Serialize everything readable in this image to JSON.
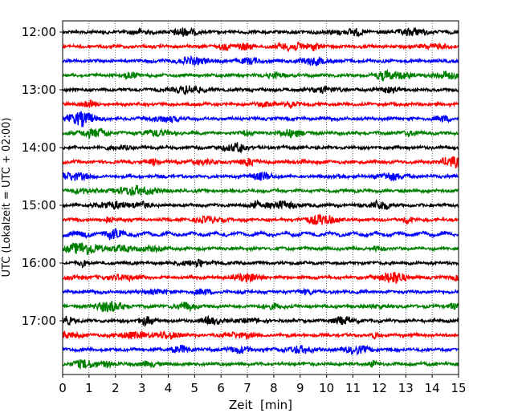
{
  "chart_data": {
    "type": "line",
    "title": "",
    "xlabel": "Zeit  [min]",
    "ylabel": "UTC (Lokalzeit = UTC + 02:00)",
    "xlim": [
      0,
      15
    ],
    "x_ticks": [
      "0",
      "1",
      "2",
      "3",
      "4",
      "5",
      "6",
      "7",
      "8",
      "9",
      "10",
      "11",
      "12",
      "13",
      "14",
      "15"
    ],
    "y_ticks": [
      "12:00",
      "13:00",
      "14:00",
      "15:00",
      "16:00",
      "17:00"
    ],
    "grid": "vertical dotted at each minute",
    "trace_interval_min": 15,
    "trace_start": "12:00",
    "trace_count": 24,
    "trace_colors": [
      "#000000",
      "#ff0000",
      "#0000ff",
      "#008000"
    ],
    "series": [
      {
        "time": "12:00",
        "color": "#000000"
      },
      {
        "time": "12:15",
        "color": "#ff0000"
      },
      {
        "time": "12:30",
        "color": "#0000ff"
      },
      {
        "time": "12:45",
        "color": "#008000"
      },
      {
        "time": "13:00",
        "color": "#000000"
      },
      {
        "time": "13:15",
        "color": "#ff0000"
      },
      {
        "time": "13:30",
        "color": "#0000ff"
      },
      {
        "time": "13:45",
        "color": "#008000"
      },
      {
        "time": "14:00",
        "color": "#000000"
      },
      {
        "time": "14:15",
        "color": "#ff0000"
      },
      {
        "time": "14:30",
        "color": "#0000ff"
      },
      {
        "time": "14:45",
        "color": "#008000"
      },
      {
        "time": "15:00",
        "color": "#000000"
      },
      {
        "time": "15:15",
        "color": "#ff0000"
      },
      {
        "time": "15:30",
        "color": "#0000ff"
      },
      {
        "time": "15:45",
        "color": "#008000"
      },
      {
        "time": "16:00",
        "color": "#000000"
      },
      {
        "time": "16:15",
        "color": "#ff0000"
      },
      {
        "time": "16:30",
        "color": "#0000ff"
      },
      {
        "time": "16:45",
        "color": "#008000"
      },
      {
        "time": "17:00",
        "color": "#000000"
      },
      {
        "time": "17:15",
        "color": "#ff0000"
      },
      {
        "time": "17:30",
        "color": "#0000ff"
      },
      {
        "time": "17:45",
        "color": "#008000"
      }
    ]
  }
}
